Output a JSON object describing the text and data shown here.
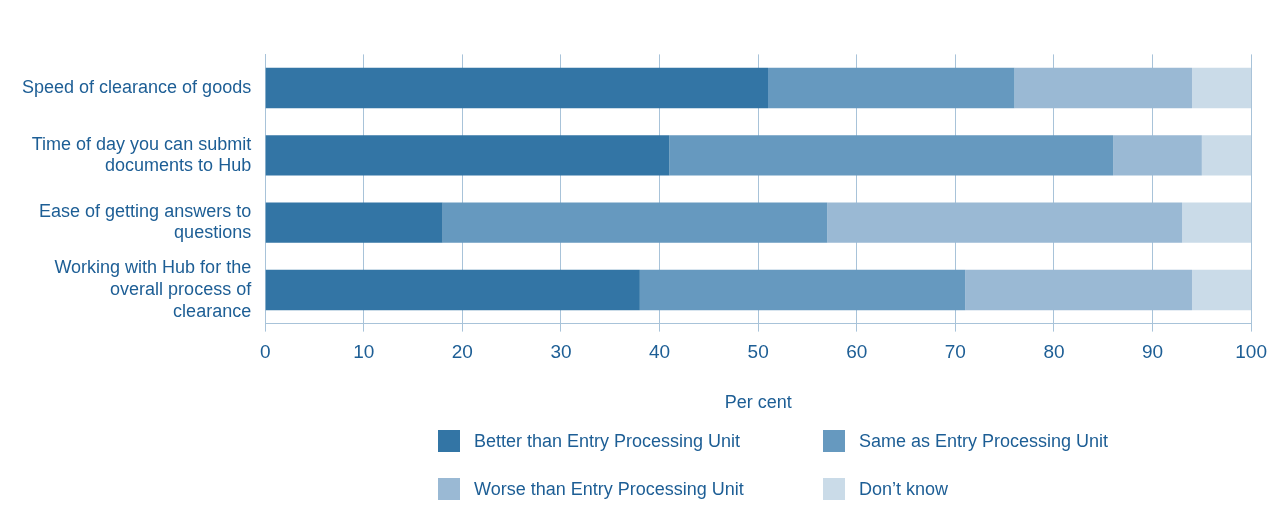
{
  "chart_data": {
    "type": "bar",
    "orientation": "horizontal",
    "stacked": true,
    "xlabel": "Per cent",
    "categories": [
      "Speed of clearance of goods",
      "Time of day you can submit documents to Hub",
      "Ease of getting answers to questions",
      "Working with Hub for the overall process of clearance"
    ],
    "series": [
      {
        "name": "Better than Entry Processing Unit",
        "color": "#3375a5",
        "values": [
          51,
          41,
          18,
          38
        ]
      },
      {
        "name": "Same as Entry Processing Unit",
        "color": "#6699bf",
        "values": [
          25,
          45,
          39,
          33
        ]
      },
      {
        "name": "Worse than Entry Processing Unit",
        "color": "#9ab9d4",
        "values": [
          18,
          9,
          36,
          23
        ]
      },
      {
        "name": "Don’t know",
        "color": "#cadbe8",
        "values": [
          6,
          5,
          7,
          6
        ]
      }
    ],
    "xlim": [
      0,
      100
    ],
    "xticks": [
      0,
      10,
      20,
      30,
      40,
      50,
      60,
      70,
      80,
      90,
      100
    ],
    "grid": "x",
    "legend": "bottom"
  }
}
